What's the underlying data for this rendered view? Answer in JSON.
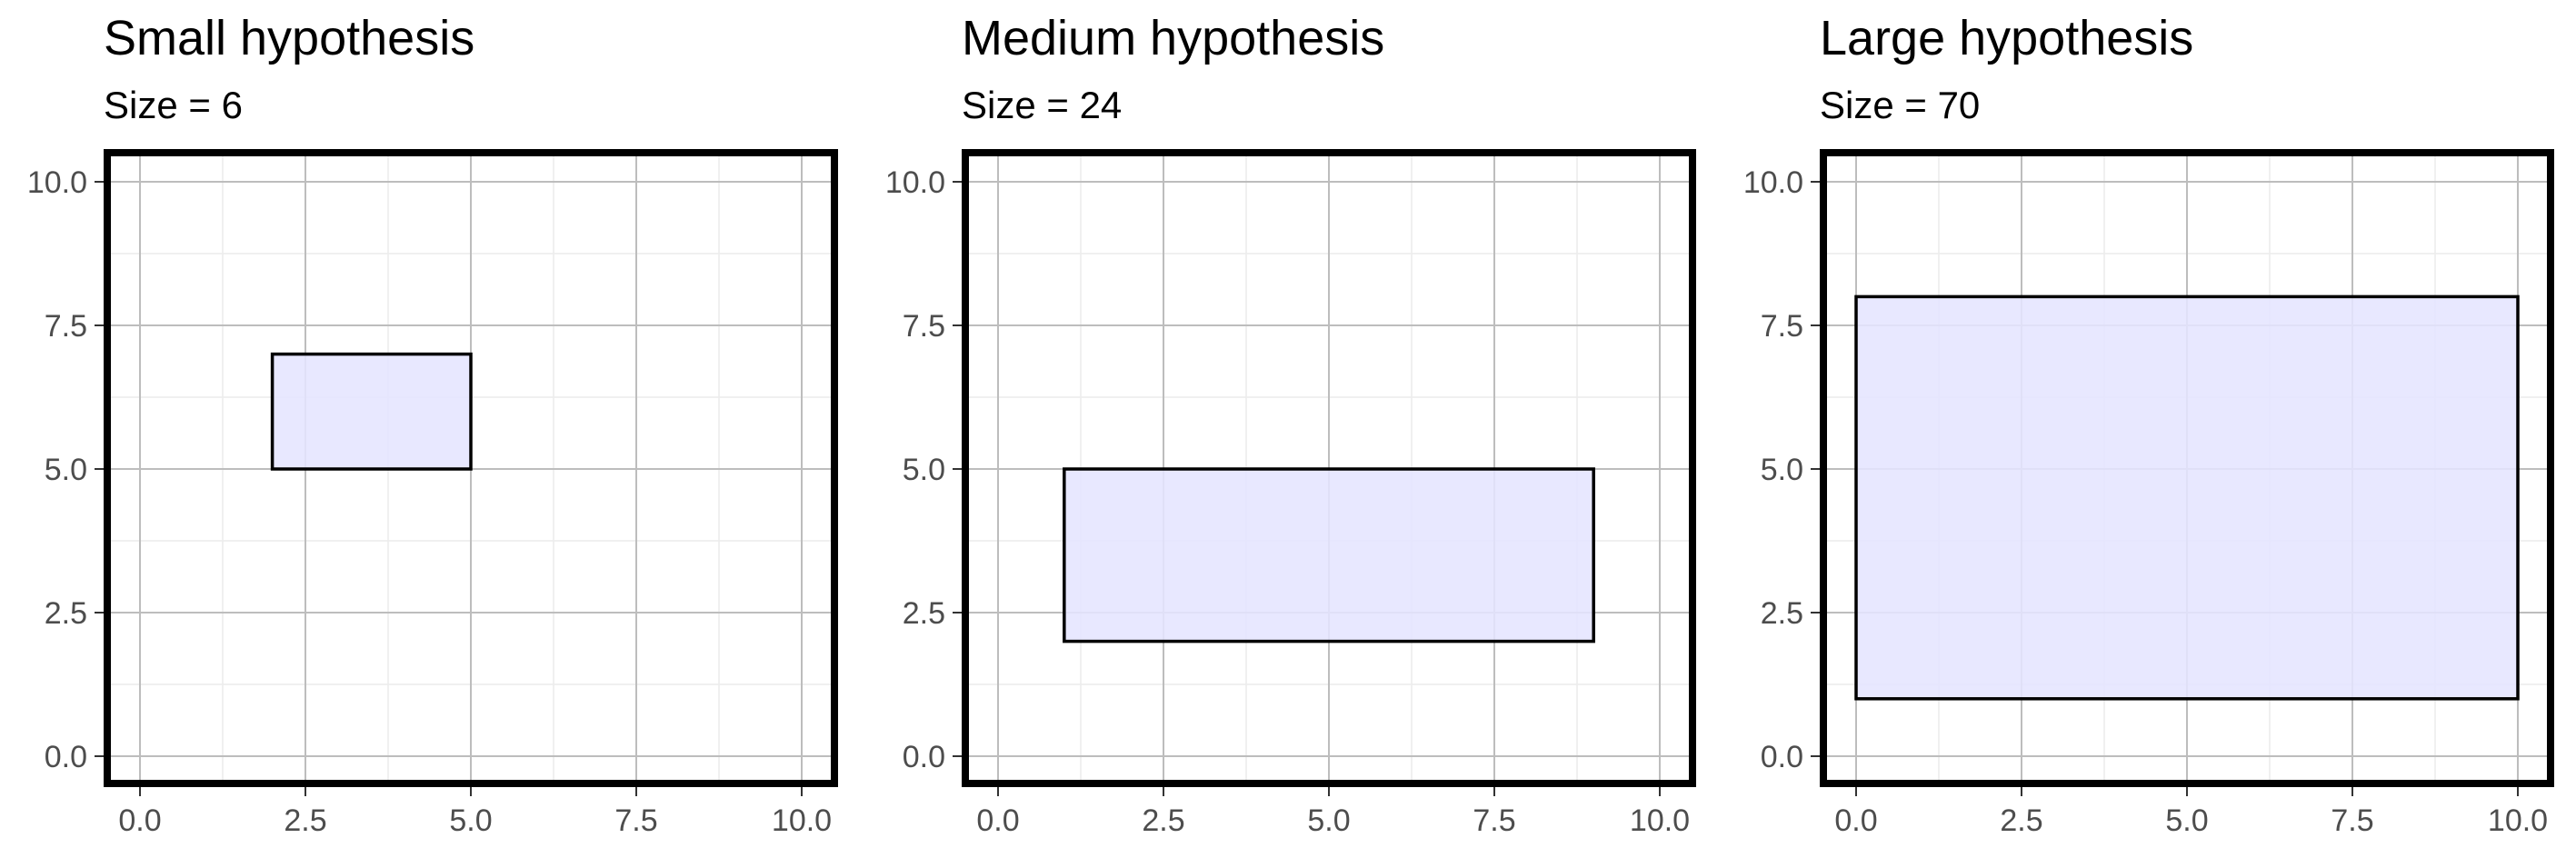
{
  "chart_data": [
    {
      "type": "rectangle",
      "title": "Small hypothesis",
      "subtitle": "Size = 6",
      "xlim": [
        0,
        10
      ],
      "ylim": [
        0,
        10
      ],
      "x_ticks": [
        "0.0",
        "2.5",
        "5.0",
        "7.5",
        "10.0"
      ],
      "y_ticks": [
        "0.0",
        "2.5",
        "5.0",
        "7.5",
        "10.0"
      ],
      "grid": true,
      "rect": {
        "x_min": 2,
        "x_max": 5,
        "y_min": 5,
        "y_max": 7
      }
    },
    {
      "type": "rectangle",
      "title": "Medium hypothesis",
      "subtitle": "Size = 24",
      "xlim": [
        0,
        10
      ],
      "ylim": [
        0,
        10
      ],
      "x_ticks": [
        "0.0",
        "2.5",
        "5.0",
        "7.5",
        "10.0"
      ],
      "y_ticks": [
        "0.0",
        "2.5",
        "5.0",
        "7.5",
        "10.0"
      ],
      "grid": true,
      "rect": {
        "x_min": 1,
        "x_max": 9,
        "y_min": 2,
        "y_max": 5
      }
    },
    {
      "type": "rectangle",
      "title": "Large hypothesis",
      "subtitle": "Size = 70",
      "xlim": [
        0,
        10
      ],
      "ylim": [
        0,
        10
      ],
      "x_ticks": [
        "0.0",
        "2.5",
        "5.0",
        "7.5",
        "10.0"
      ],
      "y_ticks": [
        "0.0",
        "2.5",
        "5.0",
        "7.5",
        "10.0"
      ],
      "grid": true,
      "rect": {
        "x_min": 0,
        "x_max": 10,
        "y_min": 1,
        "y_max": 8
      }
    }
  ],
  "colors": {
    "rect_fill": "#e5e5ff",
    "rect_stroke": "#000000",
    "panel_border": "#000000",
    "grid_major": "#bdbdbd",
    "grid_minor": "#ececec",
    "tick_text": "#4d4d4d"
  }
}
